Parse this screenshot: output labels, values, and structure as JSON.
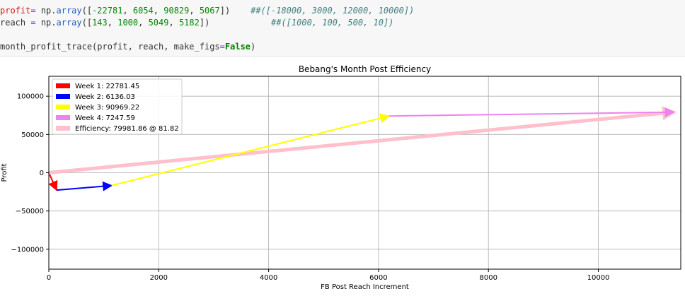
{
  "code": {
    "line1": {
      "var": "profit",
      "op": "=",
      "call": " np.",
      "fn": "array",
      "open": "([",
      "n1": "-22781",
      "n2": "6054",
      "n3": "90829",
      "n4": "5067",
      "close": "])",
      "comment": "##([-18000, 3000, 12000, 10000])"
    },
    "line2": {
      "var": "reach",
      "op": " = ",
      "call": "np.",
      "fn": "array",
      "open": "([",
      "n1": "143",
      "n2": "1000",
      "n3": "5049",
      "n4": "5182",
      "close": "])",
      "comment": "##([1000, 100, 500, 10])"
    },
    "line3": {
      "fn_call": "month_profit_trace(profit, reach, make_figs",
      "eq": "=",
      "kw": "False",
      "close": ")"
    }
  },
  "chart_data": {
    "type": "line",
    "title": "Bebang's Month Post Efficiency",
    "xlabel": "FB Post Reach Increment",
    "ylabel": "Profit",
    "xlim": [
      0,
      11500
    ],
    "ylim": [
      -126000,
      126000
    ],
    "xticks": [
      0,
      2000,
      4000,
      6000,
      8000,
      10000
    ],
    "yticks": [
      -100000,
      -50000,
      0,
      50000,
      100000
    ],
    "grid": true,
    "legend_position": "upper-left",
    "series": [
      {
        "name": "Week 1: 22781.45",
        "color": "#ff0000",
        "x": [
          0,
          143
        ],
        "y": [
          0,
          -22781
        ]
      },
      {
        "name": "Week 2: 6136.03",
        "color": "#0000ff",
        "x": [
          143,
          1143
        ],
        "y": [
          -22781,
          -16727
        ]
      },
      {
        "name": "Week 3: 90969.22",
        "color": "#ffff00",
        "x": [
          1143,
          6192
        ],
        "y": [
          -16727,
          74102
        ]
      },
      {
        "name": "Week 4: 7247.59",
        "color": "#ee82ee",
        "x": [
          6192,
          11374
        ],
        "y": [
          74102,
          79169
        ]
      },
      {
        "name": "Efficiency: 79981.86 @ 81.82",
        "color": "#ffc0cb",
        "x": [
          0,
          11374
        ],
        "y": [
          0,
          79169
        ]
      }
    ]
  }
}
